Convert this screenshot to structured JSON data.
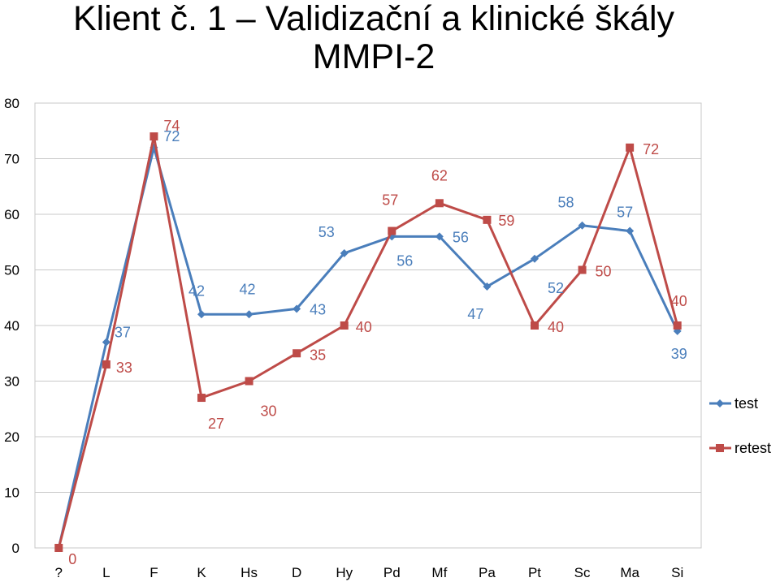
{
  "chart_data": {
    "type": "line",
    "title_line1": "Klient č. 1 – Validizační a klinické škály",
    "title_line2": "MMPI-2",
    "categories": [
      "?",
      "L",
      "F",
      "K",
      "Hs",
      "D",
      "Hy",
      "Pd",
      "Mf",
      "Pa",
      "Pt",
      "Sc",
      "Ma",
      "Si"
    ],
    "series": [
      {
        "name": "test",
        "color": "#4a7ebb",
        "marker": "diamond",
        "values": [
          0,
          37,
          72,
          42,
          42,
          43,
          53,
          56,
          56,
          47,
          52,
          58,
          57,
          39
        ],
        "labels": [
          "",
          "37",
          "72",
          "42",
          "42",
          "43",
          "53",
          "56",
          "56",
          "47",
          "52",
          "58",
          "57",
          "39"
        ]
      },
      {
        "name": "retest",
        "color": "#be4b48",
        "marker": "square",
        "values": [
          0,
          33,
          74,
          27,
          30,
          35,
          40,
          57,
          62,
          59,
          40,
          50,
          72,
          40
        ],
        "labels": [
          "0",
          "33",
          "74",
          "27",
          "30",
          "35",
          "40",
          "57",
          "62",
          "59",
          "40",
          "50",
          "72",
          "40"
        ]
      }
    ],
    "ylim": [
      0,
      80
    ],
    "yticks": [
      0,
      10,
      20,
      30,
      40,
      50,
      60,
      70,
      80
    ],
    "grid": true,
    "legend_position": "right"
  }
}
